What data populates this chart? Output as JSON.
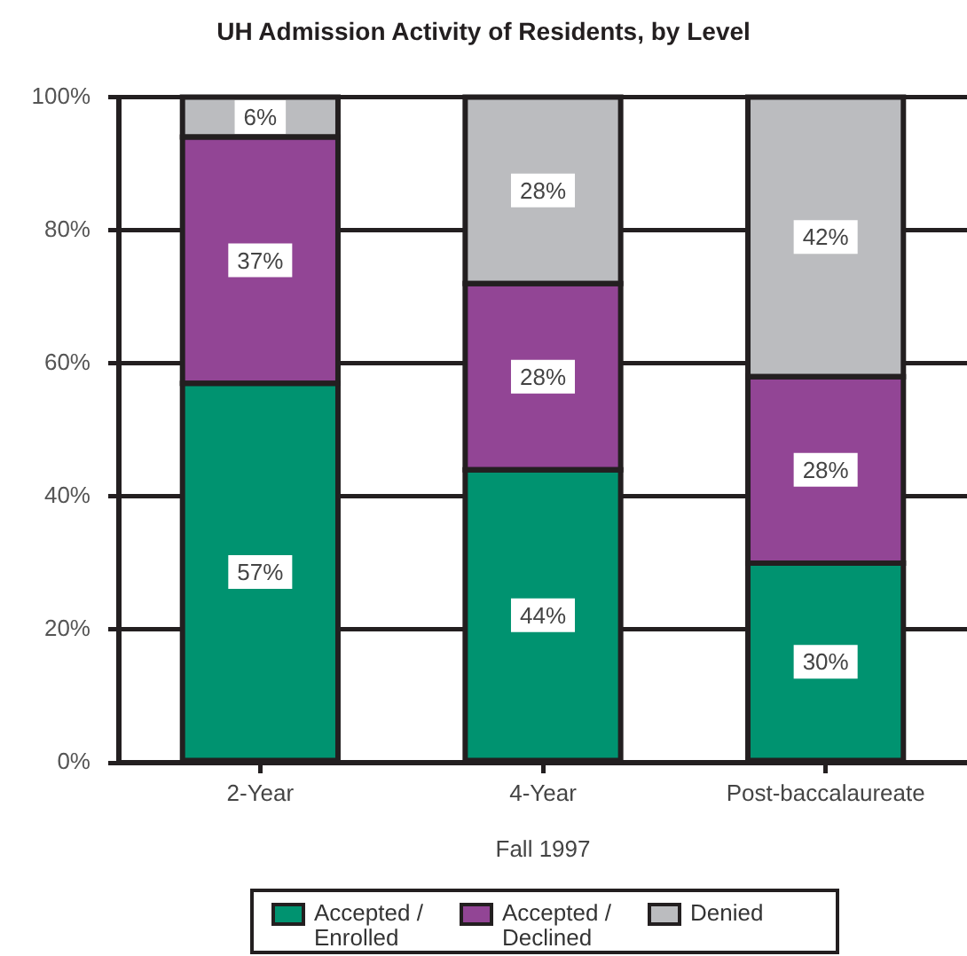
{
  "chart_data": {
    "type": "bar",
    "title": "UH Admission Activity of Residents, by Level",
    "xlabel": "Fall 1997",
    "categories": [
      "2-Year",
      "4-Year",
      "Post-baccalaureate"
    ],
    "series": [
      {
        "name": "Accepted / Enrolled",
        "color": "#009370",
        "values": [
          57,
          44,
          30
        ],
        "value_labels": [
          "57%",
          "44%",
          "30%"
        ]
      },
      {
        "name": "Accepted / Declined",
        "color": "#924595",
        "values": [
          37,
          28,
          28
        ],
        "value_labels": [
          "37%",
          "28%",
          "28%"
        ]
      },
      {
        "name": "Denied",
        "color": "#bbbcbf",
        "values": [
          6,
          28,
          42
        ],
        "value_labels": [
          "6%",
          "28%",
          "42%"
        ]
      }
    ],
    "stacked": true,
    "ylim": [
      0,
      100
    ],
    "yticks": [
      {
        "value": 0,
        "label": "0%"
      },
      {
        "value": 20,
        "label": "20%"
      },
      {
        "value": 40,
        "label": "40%"
      },
      {
        "value": 60,
        "label": "60%"
      },
      {
        "value": 80,
        "label": "80%"
      },
      {
        "value": 100,
        "label": "100%"
      }
    ],
    "grid": "y",
    "legend": "bottom"
  }
}
